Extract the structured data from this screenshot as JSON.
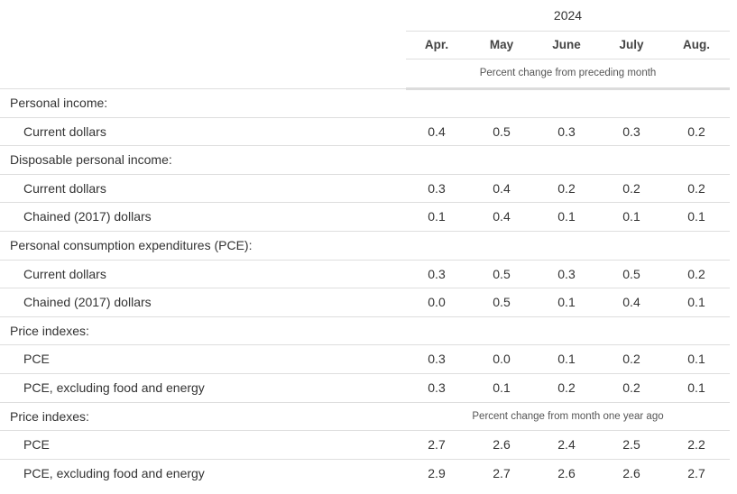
{
  "table": {
    "year": "2024",
    "months": [
      "Apr.",
      "May",
      "June",
      "July",
      "Aug."
    ],
    "subheader": "Percent change from preceding month",
    "rows": [
      {
        "type": "cat",
        "label": "Personal income:",
        "note": "",
        "values": []
      },
      {
        "type": "item",
        "label": "Current dollars",
        "note": "",
        "values": [
          "0.4",
          "0.5",
          "0.3",
          "0.3",
          "0.2"
        ]
      },
      {
        "type": "cat",
        "label": "Disposable personal income:",
        "note": "",
        "values": []
      },
      {
        "type": "item",
        "label": "Current dollars",
        "note": "",
        "values": [
          "0.3",
          "0.4",
          "0.2",
          "0.2",
          "0.2"
        ]
      },
      {
        "type": "item",
        "label": "Chained (2017) dollars",
        "note": "",
        "values": [
          "0.1",
          "0.4",
          "0.1",
          "0.1",
          "0.1"
        ]
      },
      {
        "type": "cat",
        "label": "Personal consumption expenditures (PCE):",
        "note": "",
        "values": []
      },
      {
        "type": "item",
        "label": "Current dollars",
        "note": "",
        "values": [
          "0.3",
          "0.5",
          "0.3",
          "0.5",
          "0.2"
        ]
      },
      {
        "type": "item",
        "label": "Chained (2017) dollars",
        "note": "",
        "values": [
          "0.0",
          "0.5",
          "0.1",
          "0.4",
          "0.1"
        ]
      },
      {
        "type": "cat",
        "label": "Price indexes:",
        "note": "",
        "values": []
      },
      {
        "type": "item",
        "label": "PCE",
        "note": "",
        "values": [
          "0.3",
          "0.0",
          "0.1",
          "0.2",
          "0.1"
        ]
      },
      {
        "type": "item",
        "label": "PCE, excluding food and energy",
        "note": "",
        "values": [
          "0.3",
          "0.1",
          "0.2",
          "0.2",
          "0.1"
        ]
      },
      {
        "type": "cat",
        "label": "Price indexes:",
        "note": "Percent change from month one year ago",
        "values": []
      },
      {
        "type": "item",
        "label": "PCE",
        "note": "",
        "values": [
          "2.7",
          "2.6",
          "2.4",
          "2.5",
          "2.2"
        ]
      },
      {
        "type": "item",
        "label": "PCE, excluding food and energy",
        "note": "",
        "values": [
          "2.9",
          "2.7",
          "2.6",
          "2.6",
          "2.7"
        ]
      }
    ]
  }
}
